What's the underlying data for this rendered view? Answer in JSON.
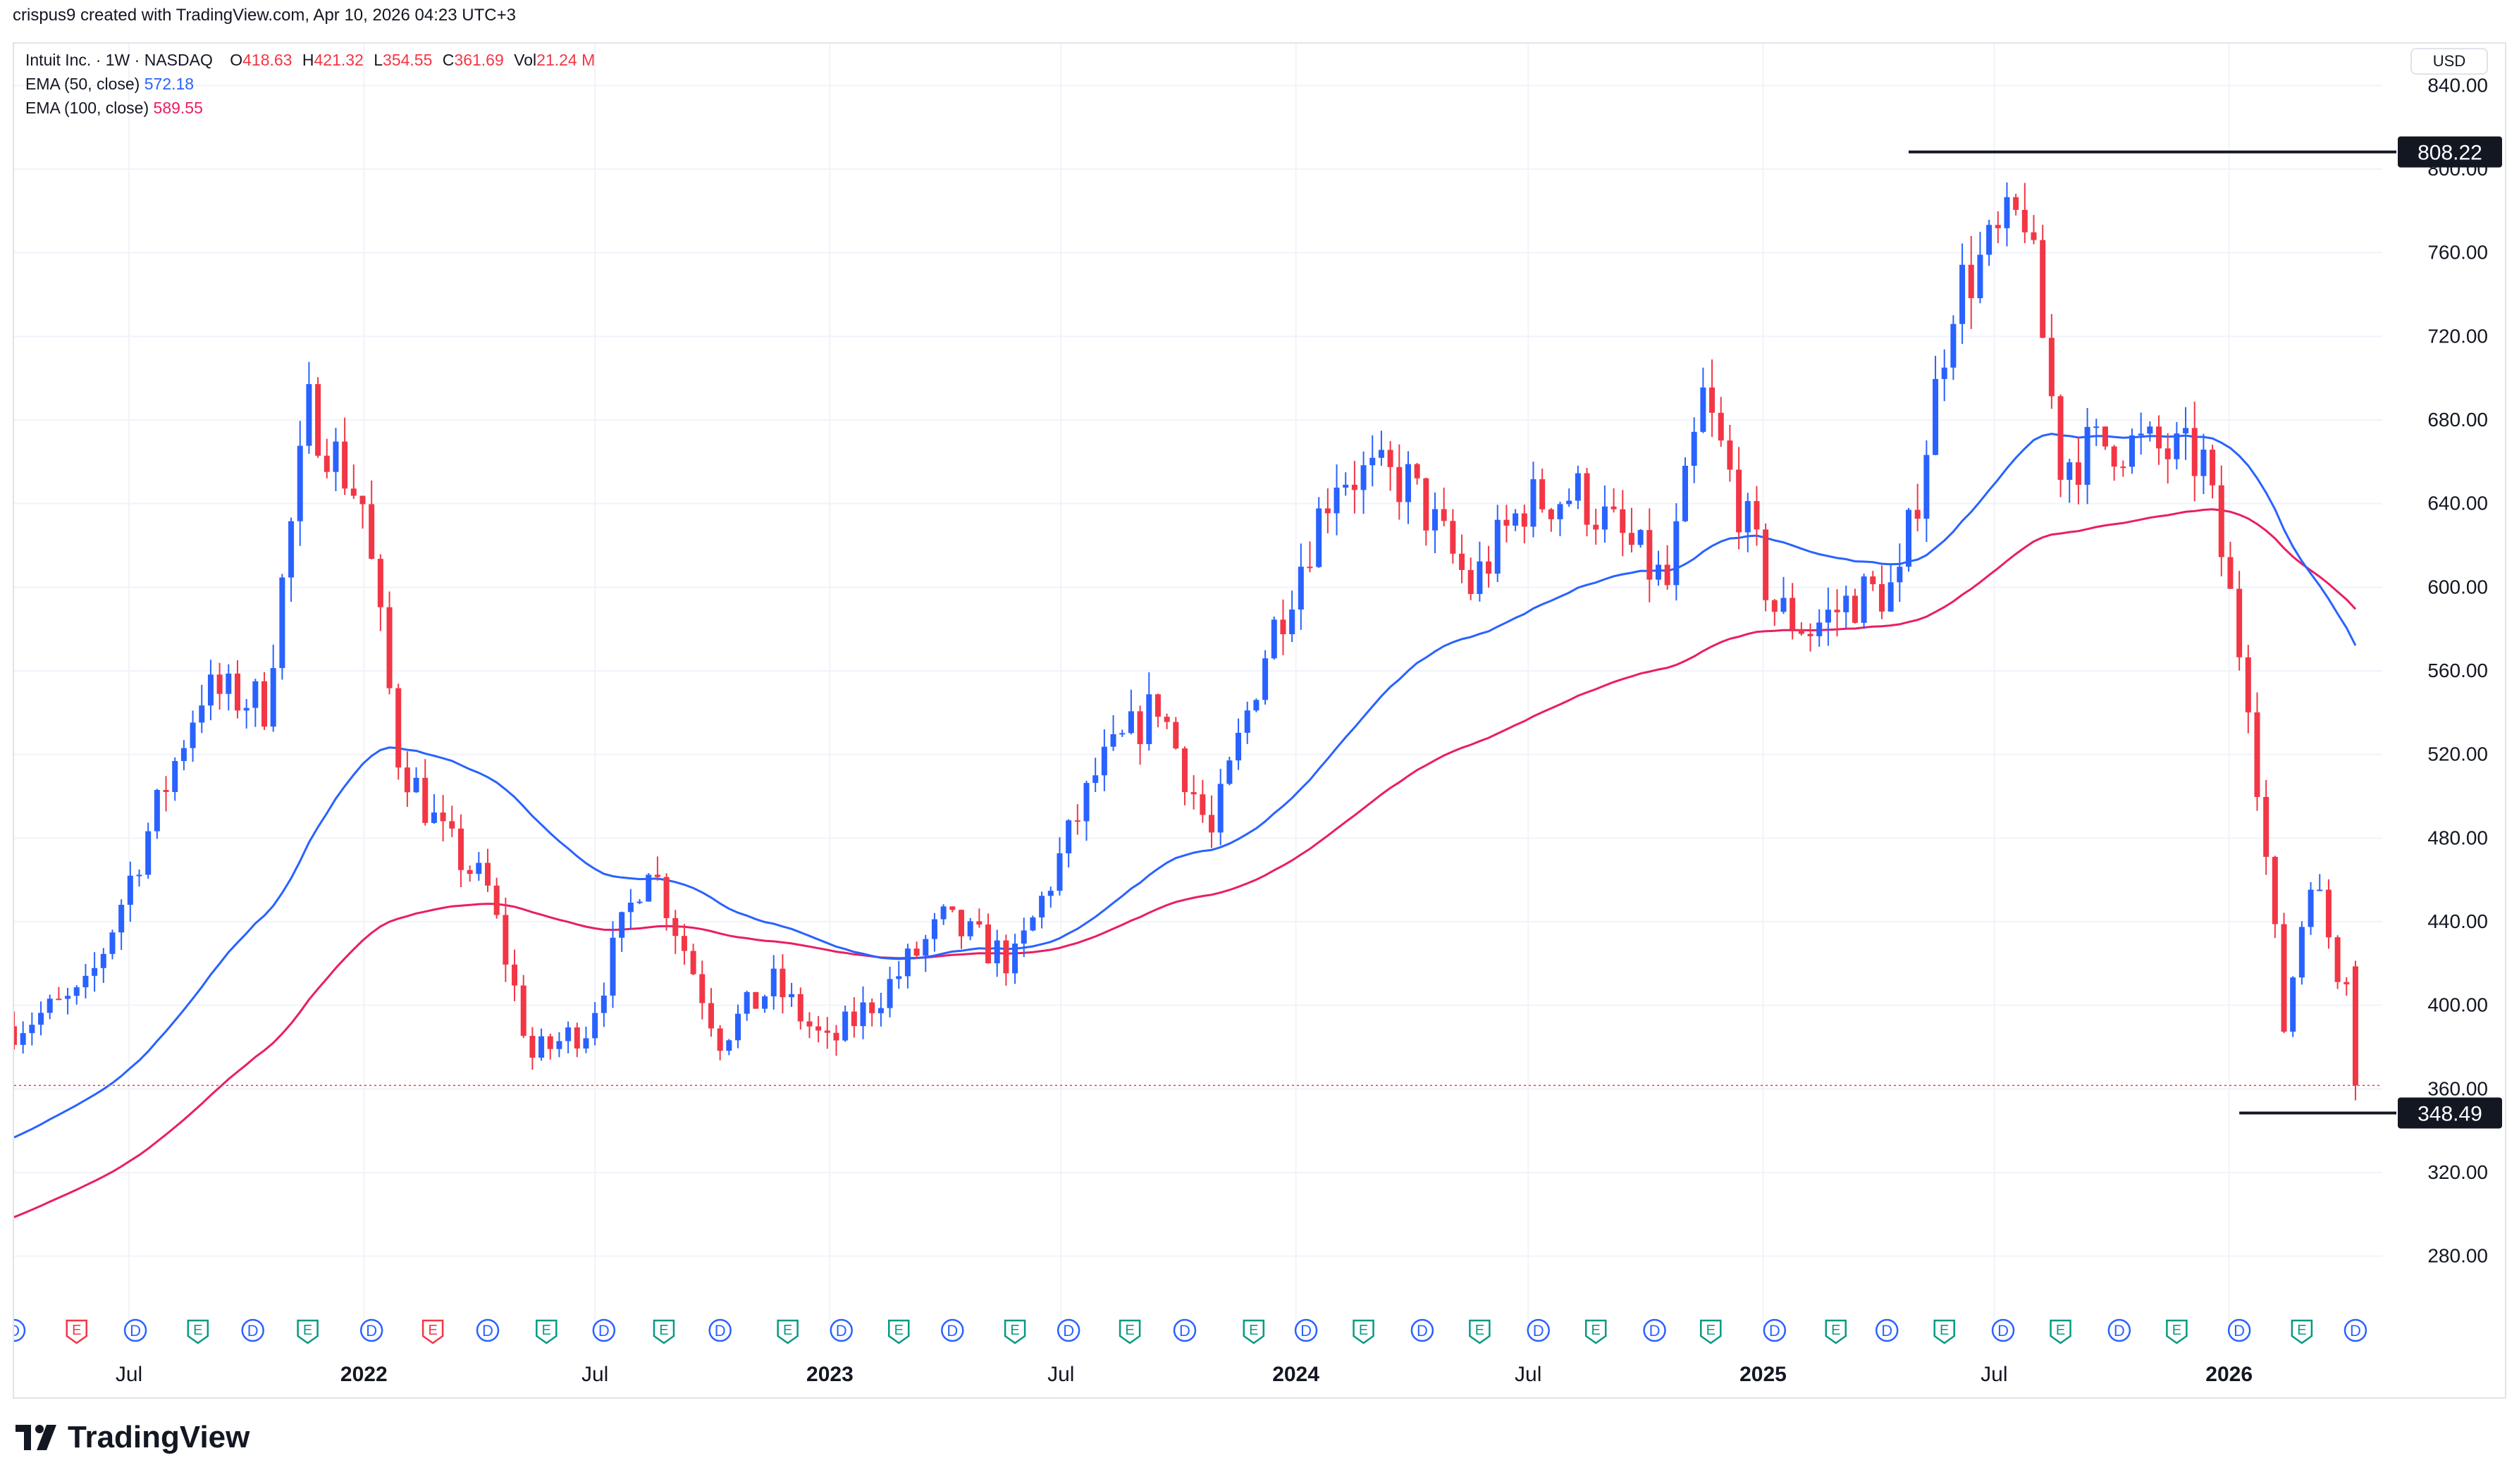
{
  "caption": "crispus9 created with TradingView.com, Apr 10, 2026 04:23 UTC+3",
  "legend": {
    "symbol": "Intuit Inc. · 1W · NASDAQ",
    "open_label": "O",
    "open": "418.63",
    "high_label": "H",
    "high": "421.32",
    "low_label": "L",
    "low": "354.55",
    "close_label": "C",
    "close": "361.69",
    "vol_label": "Vol",
    "vol": "21.24 M",
    "ema50_label": "EMA (50, close)",
    "ema50_value": "572.18",
    "ema100_label": "EMA (100, close)",
    "ema100_value": "589.55"
  },
  "currency": "USD",
  "brand": "TradingView",
  "colors": {
    "up": "#2962ff",
    "down": "#f23645",
    "ema50": "#2962ff",
    "ema100": "#e91e63",
    "grid": "#f0f3fa",
    "axis_text": "#131722",
    "event_dividend": "#2962ff",
    "event_earnings_good": "#089981",
    "event_earnings_bad": "#f23645"
  },
  "chart_data": {
    "type": "candlestick",
    "title": "Intuit Inc. · 1W · NASDAQ",
    "interval": "1W",
    "ylim": [
      260,
      860
    ],
    "y_ticks": [
      "280.00",
      "320.00",
      "360.00",
      "400.00",
      "440.00",
      "480.00",
      "520.00",
      "560.00",
      "600.00",
      "640.00",
      "680.00",
      "720.00",
      "760.00",
      "800.00",
      "840.00"
    ],
    "x_range": [
      "2021-04-02",
      "2026-05-01"
    ],
    "x_ticks": [
      {
        "date": "2021-07-01",
        "label": "Jul"
      },
      {
        "date": "2022-01-01",
        "label": "2022"
      },
      {
        "date": "2022-07-01",
        "label": "Jul"
      },
      {
        "date": "2023-01-01",
        "label": "2023"
      },
      {
        "date": "2023-07-01",
        "label": "Jul"
      },
      {
        "date": "2024-01-01",
        "label": "2024"
      },
      {
        "date": "2024-07-01",
        "label": "Jul"
      },
      {
        "date": "2025-01-01",
        "label": "2025"
      },
      {
        "date": "2025-07-01",
        "label": "Jul"
      },
      {
        "date": "2026-01-01",
        "label": "2026"
      }
    ],
    "grid": true,
    "anchors": [
      [
        "2021-04-02",
        390
      ],
      [
        "2021-05-28",
        405
      ],
      [
        "2021-08-27",
        550
      ],
      [
        "2021-10-15",
        545
      ],
      [
        "2021-11-19",
        685
      ],
      [
        "2021-12-31",
        640
      ],
      [
        "2022-01-28",
        520
      ],
      [
        "2022-03-04",
        480
      ],
      [
        "2022-04-08",
        455
      ],
      [
        "2022-05-13",
        375
      ],
      [
        "2022-06-24",
        390
      ],
      [
        "2022-08-12",
        470
      ],
      [
        "2022-10-07",
        385
      ],
      [
        "2022-11-18",
        410
      ],
      [
        "2022-12-30",
        380
      ],
      [
        "2023-02-17",
        410
      ],
      [
        "2023-03-31",
        440
      ],
      [
        "2023-05-26",
        420
      ],
      [
        "2023-07-28",
        510
      ],
      [
        "2023-09-15",
        545
      ],
      [
        "2023-10-27",
        480
      ],
      [
        "2023-12-08",
        570
      ],
      [
        "2024-02-02",
        655
      ],
      [
        "2024-03-29",
        650
      ],
      [
        "2024-05-17",
        600
      ],
      [
        "2024-06-28",
        640
      ],
      [
        "2024-08-09",
        645
      ],
      [
        "2024-10-18",
        600
      ],
      [
        "2024-11-15",
        690
      ],
      [
        "2025-01-10",
        590
      ],
      [
        "2025-02-07",
        580
      ],
      [
        "2025-03-14",
        595
      ],
      [
        "2025-04-18",
        600
      ],
      [
        "2025-05-30",
        740
      ],
      [
        "2025-07-25",
        780
      ],
      [
        "2025-08-22",
        660
      ],
      [
        "2025-10-03",
        670
      ],
      [
        "2025-12-12",
        660
      ],
      [
        "2026-01-16",
        550
      ],
      [
        "2026-02-13",
        390
      ],
      [
        "2026-03-06",
        465
      ],
      [
        "2026-03-27",
        418
      ],
      [
        "2026-04-03",
        418.63
      ]
    ],
    "last_candle": {
      "date": "2026-04-10",
      "open": 418.63,
      "high": 421.32,
      "low": 354.55,
      "close": 361.69
    },
    "ema50_end": 572.18,
    "ema100_end": 589.55,
    "ema50_start": 335,
    "ema100_start": 297,
    "current_price_line": 361.69,
    "annotations": [
      {
        "label": "808.22",
        "value": 808.22,
        "from": "2025-04-25",
        "to": "2026-05-01"
      },
      {
        "label": "348.49",
        "value": 348.49,
        "from": "2026-01-09",
        "to": "2026-05-01"
      }
    ],
    "events": [
      {
        "date": "2021-04-02",
        "type": "D"
      },
      {
        "date": "2021-05-21",
        "type": "E"
      },
      {
        "date": "2021-07-06",
        "type": "D"
      },
      {
        "date": "2021-08-24",
        "type": "E"
      },
      {
        "date": "2021-10-06",
        "type": "D"
      },
      {
        "date": "2021-11-18",
        "type": "E"
      },
      {
        "date": "2022-01-07",
        "type": "D"
      },
      {
        "date": "2022-02-24",
        "type": "E"
      },
      {
        "date": "2022-04-08",
        "type": "D"
      },
      {
        "date": "2022-05-24",
        "type": "E"
      },
      {
        "date": "2022-07-08",
        "type": "D"
      },
      {
        "date": "2022-08-24",
        "type": "E"
      },
      {
        "date": "2022-10-07",
        "type": "D"
      },
      {
        "date": "2022-11-29",
        "type": "E"
      },
      {
        "date": "2023-01-10",
        "type": "D"
      },
      {
        "date": "2023-02-24",
        "type": "E"
      },
      {
        "date": "2023-04-07",
        "type": "D"
      },
      {
        "date": "2023-05-26",
        "type": "E"
      },
      {
        "date": "2023-07-07",
        "type": "D"
      },
      {
        "date": "2023-08-24",
        "type": "E"
      },
      {
        "date": "2023-10-06",
        "type": "D"
      },
      {
        "date": "2023-11-29",
        "type": "E"
      },
      {
        "date": "2024-01-09",
        "type": "D"
      },
      {
        "date": "2024-02-23",
        "type": "E"
      },
      {
        "date": "2024-04-09",
        "type": "D"
      },
      {
        "date": "2024-05-24",
        "type": "E"
      },
      {
        "date": "2024-07-09",
        "type": "D"
      },
      {
        "date": "2024-08-23",
        "type": "E"
      },
      {
        "date": "2024-10-08",
        "type": "D"
      },
      {
        "date": "2024-11-21",
        "type": "E"
      },
      {
        "date": "2025-01-10",
        "type": "D"
      },
      {
        "date": "2025-02-27",
        "type": "E"
      },
      {
        "date": "2025-04-08",
        "type": "D"
      },
      {
        "date": "2025-05-23",
        "type": "E"
      },
      {
        "date": "2025-07-08",
        "type": "D"
      },
      {
        "date": "2025-08-22",
        "type": "E"
      },
      {
        "date": "2025-10-07",
        "type": "D"
      },
      {
        "date": "2025-11-21",
        "type": "E"
      },
      {
        "date": "2026-01-09",
        "type": "D"
      },
      {
        "date": "2026-02-27",
        "type": "E"
      },
      {
        "date": "2026-04-10",
        "type": "D"
      }
    ]
  }
}
